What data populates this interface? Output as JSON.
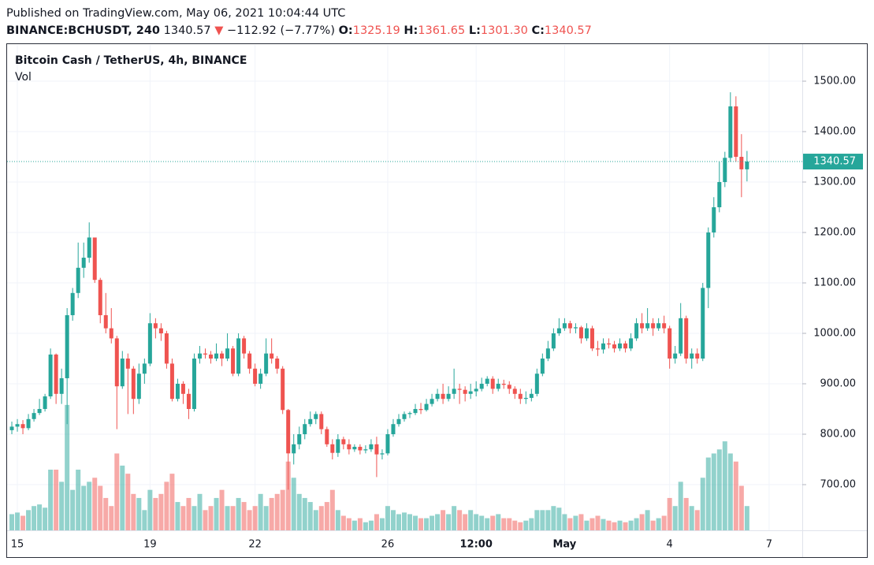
{
  "header": {
    "published": "Published on TradingView.com, May 06, 2021 10:04:44 UTC",
    "symbol": "BINANCE:BCHUSDT, 240",
    "last": "1340.57",
    "arrow": "▼",
    "change": "−112.92 (−7.77%)",
    "ohlc": [
      {
        "key": "O:",
        "value": "1325.19"
      },
      {
        "key": "H:",
        "value": "1361.65"
      },
      {
        "key": "L:",
        "value": "1301.30"
      },
      {
        "key": "C:",
        "value": "1340.57"
      }
    ]
  },
  "chart_data": {
    "type": "candlestick",
    "title": "Bitcoin Cash / TetherUS, 4h, BINANCE",
    "volume_label": "Vol",
    "up_color": "#26a69a",
    "down_color": "#ef5350",
    "grid": true,
    "ylim": [
      609.4,
      1571.9
    ],
    "yticks": [
      {
        "value": 700,
        "label": "700.00"
      },
      {
        "value": 800,
        "label": "800.00"
      },
      {
        "value": 900,
        "label": "900.00"
      },
      {
        "value": 1000,
        "label": "1000.00"
      },
      {
        "value": 1100,
        "label": "1100.00"
      },
      {
        "value": 1200,
        "label": "1200.00"
      },
      {
        "value": 1300,
        "label": "1300.00"
      },
      {
        "value": 1400,
        "label": "1400.00"
      },
      {
        "value": 1500,
        "label": "1500.00"
      }
    ],
    "xlim": [
      -1,
      143
    ],
    "xticks": [
      {
        "value": 1,
        "label": "15"
      },
      {
        "value": 25,
        "label": "19"
      },
      {
        "value": 44,
        "label": "22"
      },
      {
        "value": 68,
        "label": "26"
      },
      {
        "value": 84,
        "label": "12:00"
      },
      {
        "value": 100,
        "label": "May"
      },
      {
        "value": 119,
        "label": "4"
      },
      {
        "value": 137,
        "label": "7"
      }
    ],
    "last_price": {
      "value": 1340.57,
      "label": "1340.57"
    },
    "vlim": [
      0,
      600
    ],
    "open": [
      808,
      815,
      820,
      812,
      830,
      842,
      850,
      875,
      958,
      880,
      911,
      1036,
      1080,
      1130,
      1150,
      1190,
      1106,
      1036,
      1010,
      990,
      895,
      950,
      930,
      870,
      920,
      940,
      1020,
      1010,
      1000,
      940,
      870,
      900,
      880,
      850,
      950,
      960,
      958,
      950,
      960,
      950,
      970,
      920,
      990,
      960,
      930,
      900,
      920,
      960,
      950,
      930,
      848,
      762,
      780,
      800,
      820,
      830,
      840,
      810,
      780,
      763,
      790,
      780,
      770,
      775,
      768,
      770,
      780,
      760,
      762,
      800,
      820,
      830,
      840,
      842,
      850,
      848,
      860,
      870,
      880,
      870,
      880,
      890,
      888,
      880,
      885,
      890,
      900,
      910,
      890,
      900,
      898,
      890,
      880,
      870,
      872,
      880,
      920,
      950,
      970,
      1000,
      1010,
      1020,
      1010,
      1012,
      990,
      1010,
      970,
      968,
      980,
      978,
      970,
      980,
      970,
      990,
      1020,
      1010,
      1020,
      1010,
      1020,
      1010,
      950,
      960,
      1030,
      950,
      960,
      950,
      1090,
      1200,
      1250,
      1300,
      1348,
      1450,
      1350,
      1325.19
    ],
    "high": [
      825,
      830,
      828,
      840,
      850,
      870,
      880,
      970,
      960,
      930,
      1050,
      1090,
      1180,
      1180,
      1220,
      1185,
      1110,
      1080,
      1050,
      995,
      965,
      960,
      935,
      940,
      950,
      1040,
      1030,
      1020,
      1005,
      950,
      910,
      905,
      890,
      960,
      975,
      970,
      965,
      980,
      965,
      1000,
      975,
      1000,
      995,
      965,
      940,
      930,
      990,
      990,
      955,
      935,
      850,
      800,
      815,
      830,
      845,
      845,
      845,
      815,
      790,
      800,
      795,
      790,
      780,
      780,
      778,
      790,
      795,
      770,
      810,
      830,
      840,
      845,
      845,
      860,
      862,
      870,
      880,
      890,
      900,
      895,
      930,
      900,
      895,
      900,
      905,
      912,
      915,
      915,
      910,
      908,
      905,
      895,
      890,
      885,
      890,
      930,
      960,
      985,
      1010,
      1030,
      1030,
      1025,
      1020,
      1015,
      1020,
      1015,
      985,
      990,
      990,
      985,
      990,
      985,
      1000,
      1030,
      1040,
      1050,
      1030,
      1030,
      1035,
      1015,
      975,
      1060,
      1035,
      970,
      970,
      1100,
      1210,
      1270,
      1340,
      1360,
      1478,
      1470,
      1395,
      1361.65
    ],
    "low": [
      800,
      805,
      800,
      808,
      825,
      838,
      845,
      870,
      860,
      860,
      820,
      1025,
      1070,
      1110,
      1140,
      1100,
      1020,
      1000,
      980,
      810,
      890,
      840,
      840,
      860,
      900,
      935,
      990,
      985,
      930,
      865,
      865,
      860,
      830,
      845,
      940,
      950,
      940,
      945,
      935,
      945,
      915,
      915,
      950,
      920,
      895,
      890,
      915,
      940,
      920,
      840,
      690,
      740,
      770,
      790,
      815,
      820,
      800,
      775,
      750,
      755,
      770,
      760,
      765,
      760,
      762,
      765,
      715,
      750,
      758,
      795,
      815,
      825,
      832,
      838,
      840,
      845,
      855,
      865,
      860,
      865,
      870,
      860,
      865,
      870,
      875,
      885,
      895,
      880,
      885,
      890,
      880,
      870,
      860,
      860,
      865,
      875,
      915,
      945,
      965,
      995,
      1005,
      1000,
      1000,
      980,
      985,
      965,
      955,
      960,
      970,
      962,
      965,
      962,
      965,
      985,
      1000,
      1005,
      995,
      1005,
      1000,
      930,
      940,
      955,
      940,
      930,
      940,
      945,
      1050,
      1190,
      1240,
      1290,
      1340,
      1340,
      1270,
      1301.3
    ],
    "close": [
      815,
      820,
      812,
      830,
      842,
      850,
      875,
      958,
      880,
      911,
      1036,
      1080,
      1130,
      1150,
      1190,
      1106,
      1036,
      1010,
      990,
      895,
      950,
      930,
      870,
      920,
      940,
      1020,
      1010,
      1000,
      940,
      870,
      900,
      880,
      850,
      950,
      960,
      958,
      950,
      960,
      950,
      970,
      920,
      990,
      960,
      930,
      900,
      920,
      960,
      950,
      930,
      848,
      762,
      780,
      800,
      820,
      830,
      840,
      810,
      780,
      763,
      790,
      780,
      770,
      775,
      768,
      770,
      780,
      760,
      762,
      800,
      820,
      830,
      840,
      842,
      850,
      848,
      860,
      870,
      880,
      870,
      880,
      890,
      888,
      880,
      885,
      890,
      900,
      910,
      890,
      900,
      898,
      890,
      880,
      870,
      872,
      880,
      920,
      950,
      970,
      1000,
      1010,
      1020,
      1010,
      1012,
      990,
      1010,
      970,
      968,
      980,
      978,
      970,
      980,
      970,
      990,
      1020,
      1010,
      1020,
      1010,
      1020,
      1010,
      950,
      960,
      1030,
      950,
      960,
      950,
      1090,
      1200,
      1250,
      1300,
      1348,
      1450,
      1350,
      1325.19,
      1340.57
    ],
    "volume": [
      20,
      22,
      18,
      25,
      30,
      32,
      28,
      75,
      75,
      60,
      155,
      50,
      75,
      55,
      60,
      65,
      55,
      40,
      30,
      95,
      80,
      70,
      45,
      40,
      25,
      50,
      40,
      45,
      60,
      70,
      35,
      30,
      40,
      30,
      45,
      25,
      30,
      40,
      50,
      30,
      30,
      40,
      35,
      25,
      30,
      45,
      30,
      40,
      45,
      50,
      85,
      65,
      45,
      40,
      35,
      25,
      30,
      35,
      50,
      25,
      18,
      15,
      12,
      15,
      10,
      12,
      20,
      15,
      30,
      25,
      20,
      22,
      20,
      18,
      15,
      15,
      18,
      20,
      25,
      20,
      30,
      25,
      20,
      25,
      20,
      18,
      15,
      18,
      20,
      15,
      15,
      12,
      10,
      12,
      15,
      25,
      25,
      25,
      30,
      28,
      20,
      15,
      18,
      20,
      12,
      15,
      18,
      14,
      12,
      10,
      12,
      10,
      12,
      15,
      20,
      25,
      12,
      15,
      18,
      40,
      30,
      60,
      40,
      30,
      25,
      65,
      90,
      95,
      100,
      110,
      95,
      85,
      55,
      30
    ]
  }
}
